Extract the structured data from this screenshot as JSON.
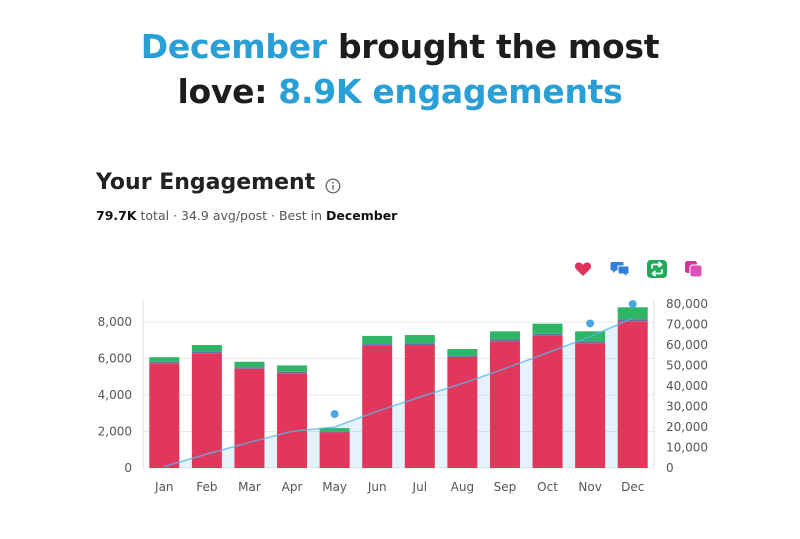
{
  "headline": {
    "part1": "December",
    "part2": " brought the most",
    "part3": "love: ",
    "part4": "8.9K engagements"
  },
  "card": {
    "title": "Your Engagement",
    "total_value": "79.7K",
    "total_label": " total · ",
    "avg_text": "34.9 avg/post",
    "best_label": " · Best in ",
    "best_month": "December"
  },
  "legend": [
    {
      "name": "likes",
      "icon": "heart-icon",
      "color": "#e0325a"
    },
    {
      "name": "replies",
      "icon": "reply-bubble-icon",
      "color": "#2f7fd6"
    },
    {
      "name": "reposts",
      "icon": "repost-icon",
      "color": "#1faa5c"
    },
    {
      "name": "quotes",
      "icon": "quote-copy-icon",
      "color": "#d63aa8"
    }
  ],
  "chart_data": {
    "type": "bar",
    "categories": [
      "Jan",
      "Feb",
      "Mar",
      "Apr",
      "May",
      "Jun",
      "Jul",
      "Aug",
      "Sep",
      "Oct",
      "Nov",
      "Dec"
    ],
    "series": [
      {
        "name": "likes",
        "color": "#e0375a",
        "values": [
          5750,
          6300,
          5450,
          5200,
          1950,
          6700,
          6750,
          6100,
          6950,
          7250,
          6850,
          8050
        ]
      },
      {
        "name": "replies",
        "color": "#6a6fa8",
        "values": [
          80,
          100,
          80,
          80,
          40,
          100,
          100,
          80,
          100,
          120,
          100,
          120
        ]
      },
      {
        "name": "reposts",
        "color": "#2eb565",
        "values": [
          250,
          350,
          300,
          350,
          200,
          450,
          450,
          350,
          450,
          550,
          550,
          650
        ]
      }
    ],
    "cumulative": {
      "color": "#5ab4e8",
      "values": [
        700,
        6800,
        12500,
        17900,
        20000,
        27700,
        34600,
        41200,
        48500,
        56200,
        64100,
        73100
      ]
    },
    "markers": [
      {
        "index": 4,
        "value": 26300
      },
      {
        "index": 10,
        "value": 70500
      },
      {
        "index": 11,
        "value": 80000
      }
    ],
    "y_left": {
      "ticks": [
        0,
        2000,
        4000,
        6000,
        8000
      ],
      "tick_labels": [
        "0",
        "2,000",
        "4,000",
        "6,000",
        "8,000"
      ],
      "ylim": [
        0,
        9000
      ]
    },
    "y_right": {
      "ticks": [
        0,
        10000,
        20000,
        30000,
        40000,
        50000,
        60000,
        70000,
        80000
      ],
      "tick_labels": [
        "0",
        "10,000",
        "20,000",
        "30,000",
        "40,000",
        "50,000",
        "60,000",
        "70,000",
        "80,000"
      ],
      "ylim": [
        0,
        80000
      ]
    },
    "grid": true
  }
}
